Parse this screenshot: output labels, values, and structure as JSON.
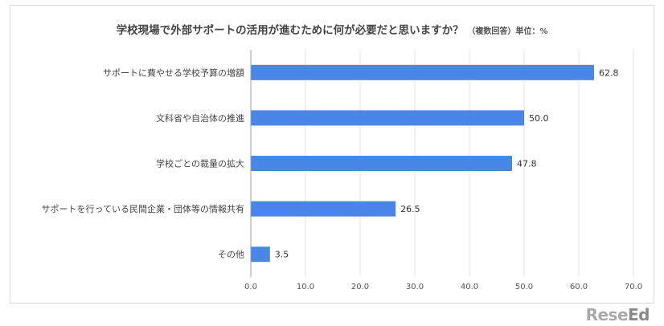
{
  "chart_data": {
    "type": "bar",
    "orientation": "horizontal",
    "title": "学校現場で外部サポートの活用が進むために何が必要だと思いますか？",
    "subtitle": "（複数回答）単位：%",
    "categories": [
      "サポートに費やせる学校予算の増額",
      "文科省や自治体の推進",
      "学校ごとの裁量の拡大",
      "サポートを行っている民間企業・団体等の情報共有",
      "その他"
    ],
    "values": [
      62.8,
      50.0,
      47.8,
      26.5,
      3.5
    ],
    "value_labels": [
      "62.8",
      "50.0",
      "47.8",
      "26.5",
      "3.5"
    ],
    "xlim": [
      0,
      70
    ],
    "xticks": [
      "0.0",
      "10.0",
      "20.0",
      "30.0",
      "40.0",
      "50.0",
      "60.0",
      "70.0"
    ],
    "grid": true,
    "bar_color": "#4a86e8"
  },
  "watermark": "ReseEd"
}
